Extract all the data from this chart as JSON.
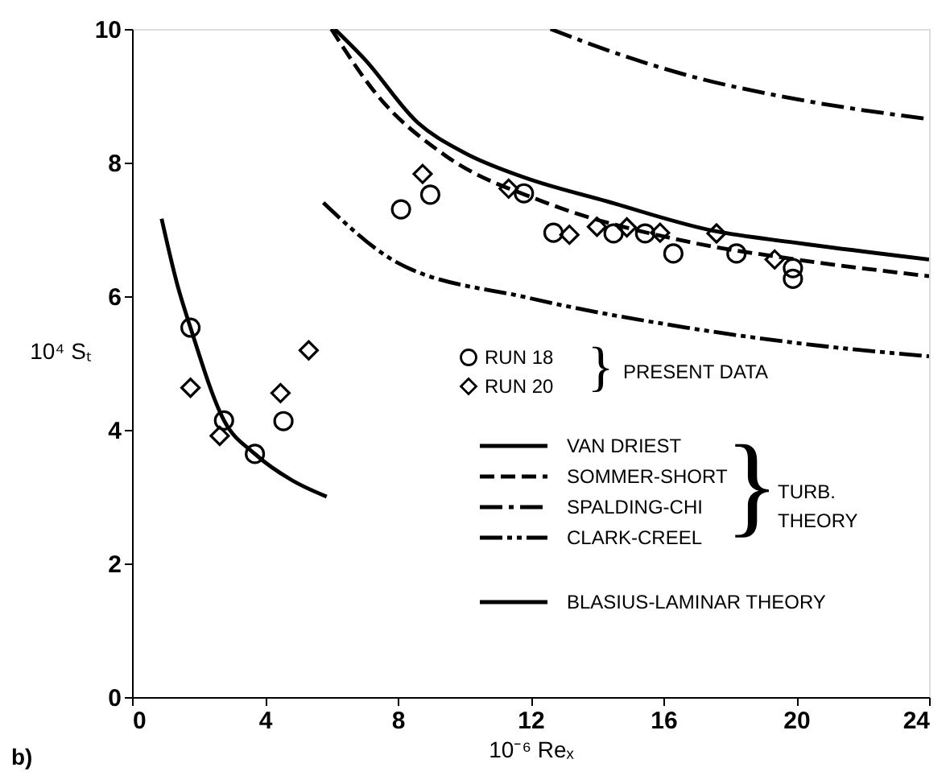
{
  "chart_data": {
    "type": "scatter",
    "xlabel": "10⁻⁶ Reₓ",
    "ylabel": "10⁴ Sₜ",
    "xlim": [
      0,
      24
    ],
    "xticks": [
      0,
      4,
      8,
      12,
      16,
      20,
      24
    ],
    "ylim": [
      0,
      10
    ],
    "yticks": [
      0,
      2,
      4,
      6,
      8,
      10
    ],
    "grid": false,
    "legend": "bottom right",
    "annotations": [
      "}",
      "PRESENT DATA",
      "}",
      "TURB.\nTHEORY",
      "b)"
    ],
    "series": [
      {
        "name": "RUN 18",
        "marker": "circle",
        "color": "#000000",
        "x": [
          1.76,
          2.77,
          3.7,
          4.56,
          8.1,
          8.98,
          11.8,
          12.69,
          14.5,
          15.45,
          16.3,
          18.2,
          19.9,
          19.9
        ],
        "values": [
          5.53,
          4.14,
          3.64,
          4.13,
          7.3,
          7.52,
          7.54,
          6.95,
          6.94,
          6.94,
          6.64,
          6.64,
          6.42,
          6.26
        ]
      },
      {
        "name": "RUN 20",
        "marker": "diamond",
        "color": "#000000",
        "x": [
          1.76,
          2.64,
          4.47,
          5.32,
          8.75,
          11.34,
          13.17,
          14.0,
          14.9,
          15.9,
          17.6,
          19.35
        ],
        "values": [
          4.63,
          3.91,
          4.55,
          5.19,
          7.83,
          7.61,
          6.92,
          7.04,
          7.03,
          6.95,
          6.94,
          6.55
        ]
      },
      {
        "name": "VAN DRIEST",
        "type": "line",
        "line_style": "solid",
        "color": "#000000",
        "x": [
          6.1,
          7.0,
          8.6,
          10.0,
          11.8,
          14.3,
          17.5,
          20.0,
          24.0
        ],
        "values": [
          10.0,
          9.55,
          8.6,
          8.15,
          7.78,
          7.42,
          6.98,
          6.8,
          6.55
        ]
      },
      {
        "name": "SOMMER-SHORT",
        "type": "line",
        "line_style": "dashed",
        "color": "#000000",
        "x": [
          6.0,
          7.35,
          9.45,
          12.36,
          16.7,
          20.0,
          24.0
        ],
        "values": [
          10.0,
          9.03,
          8.1,
          7.42,
          6.82,
          6.55,
          6.3
        ]
      },
      {
        "name": "SPALDING-CHI",
        "type": "line",
        "line_style": "dashdot",
        "color": "#000000",
        "x": [
          12.6,
          14.5,
          16.7,
          20.0,
          24.0
        ],
        "values": [
          10.0,
          9.65,
          9.31,
          8.95,
          8.65
        ]
      },
      {
        "name": "CLARK-CREEL",
        "type": "line",
        "line_style": "dashdotdot",
        "color": "#000000",
        "x": [
          5.76,
          8.0,
          11.9,
          16.7,
          20.0,
          24.0
        ],
        "values": [
          7.4,
          6.5,
          5.98,
          5.53,
          5.3,
          5.1
        ]
      },
      {
        "name": "BLASIUS-LAMINAR THEORY",
        "type": "line",
        "line_style": "solid",
        "color": "#000000",
        "x": [
          0.89,
          1.36,
          1.76,
          2.77,
          3.7,
          4.8,
          5.86
        ],
        "values": [
          7.16,
          6.18,
          5.53,
          4.14,
          3.64,
          3.25,
          3.0
        ]
      }
    ]
  }
}
